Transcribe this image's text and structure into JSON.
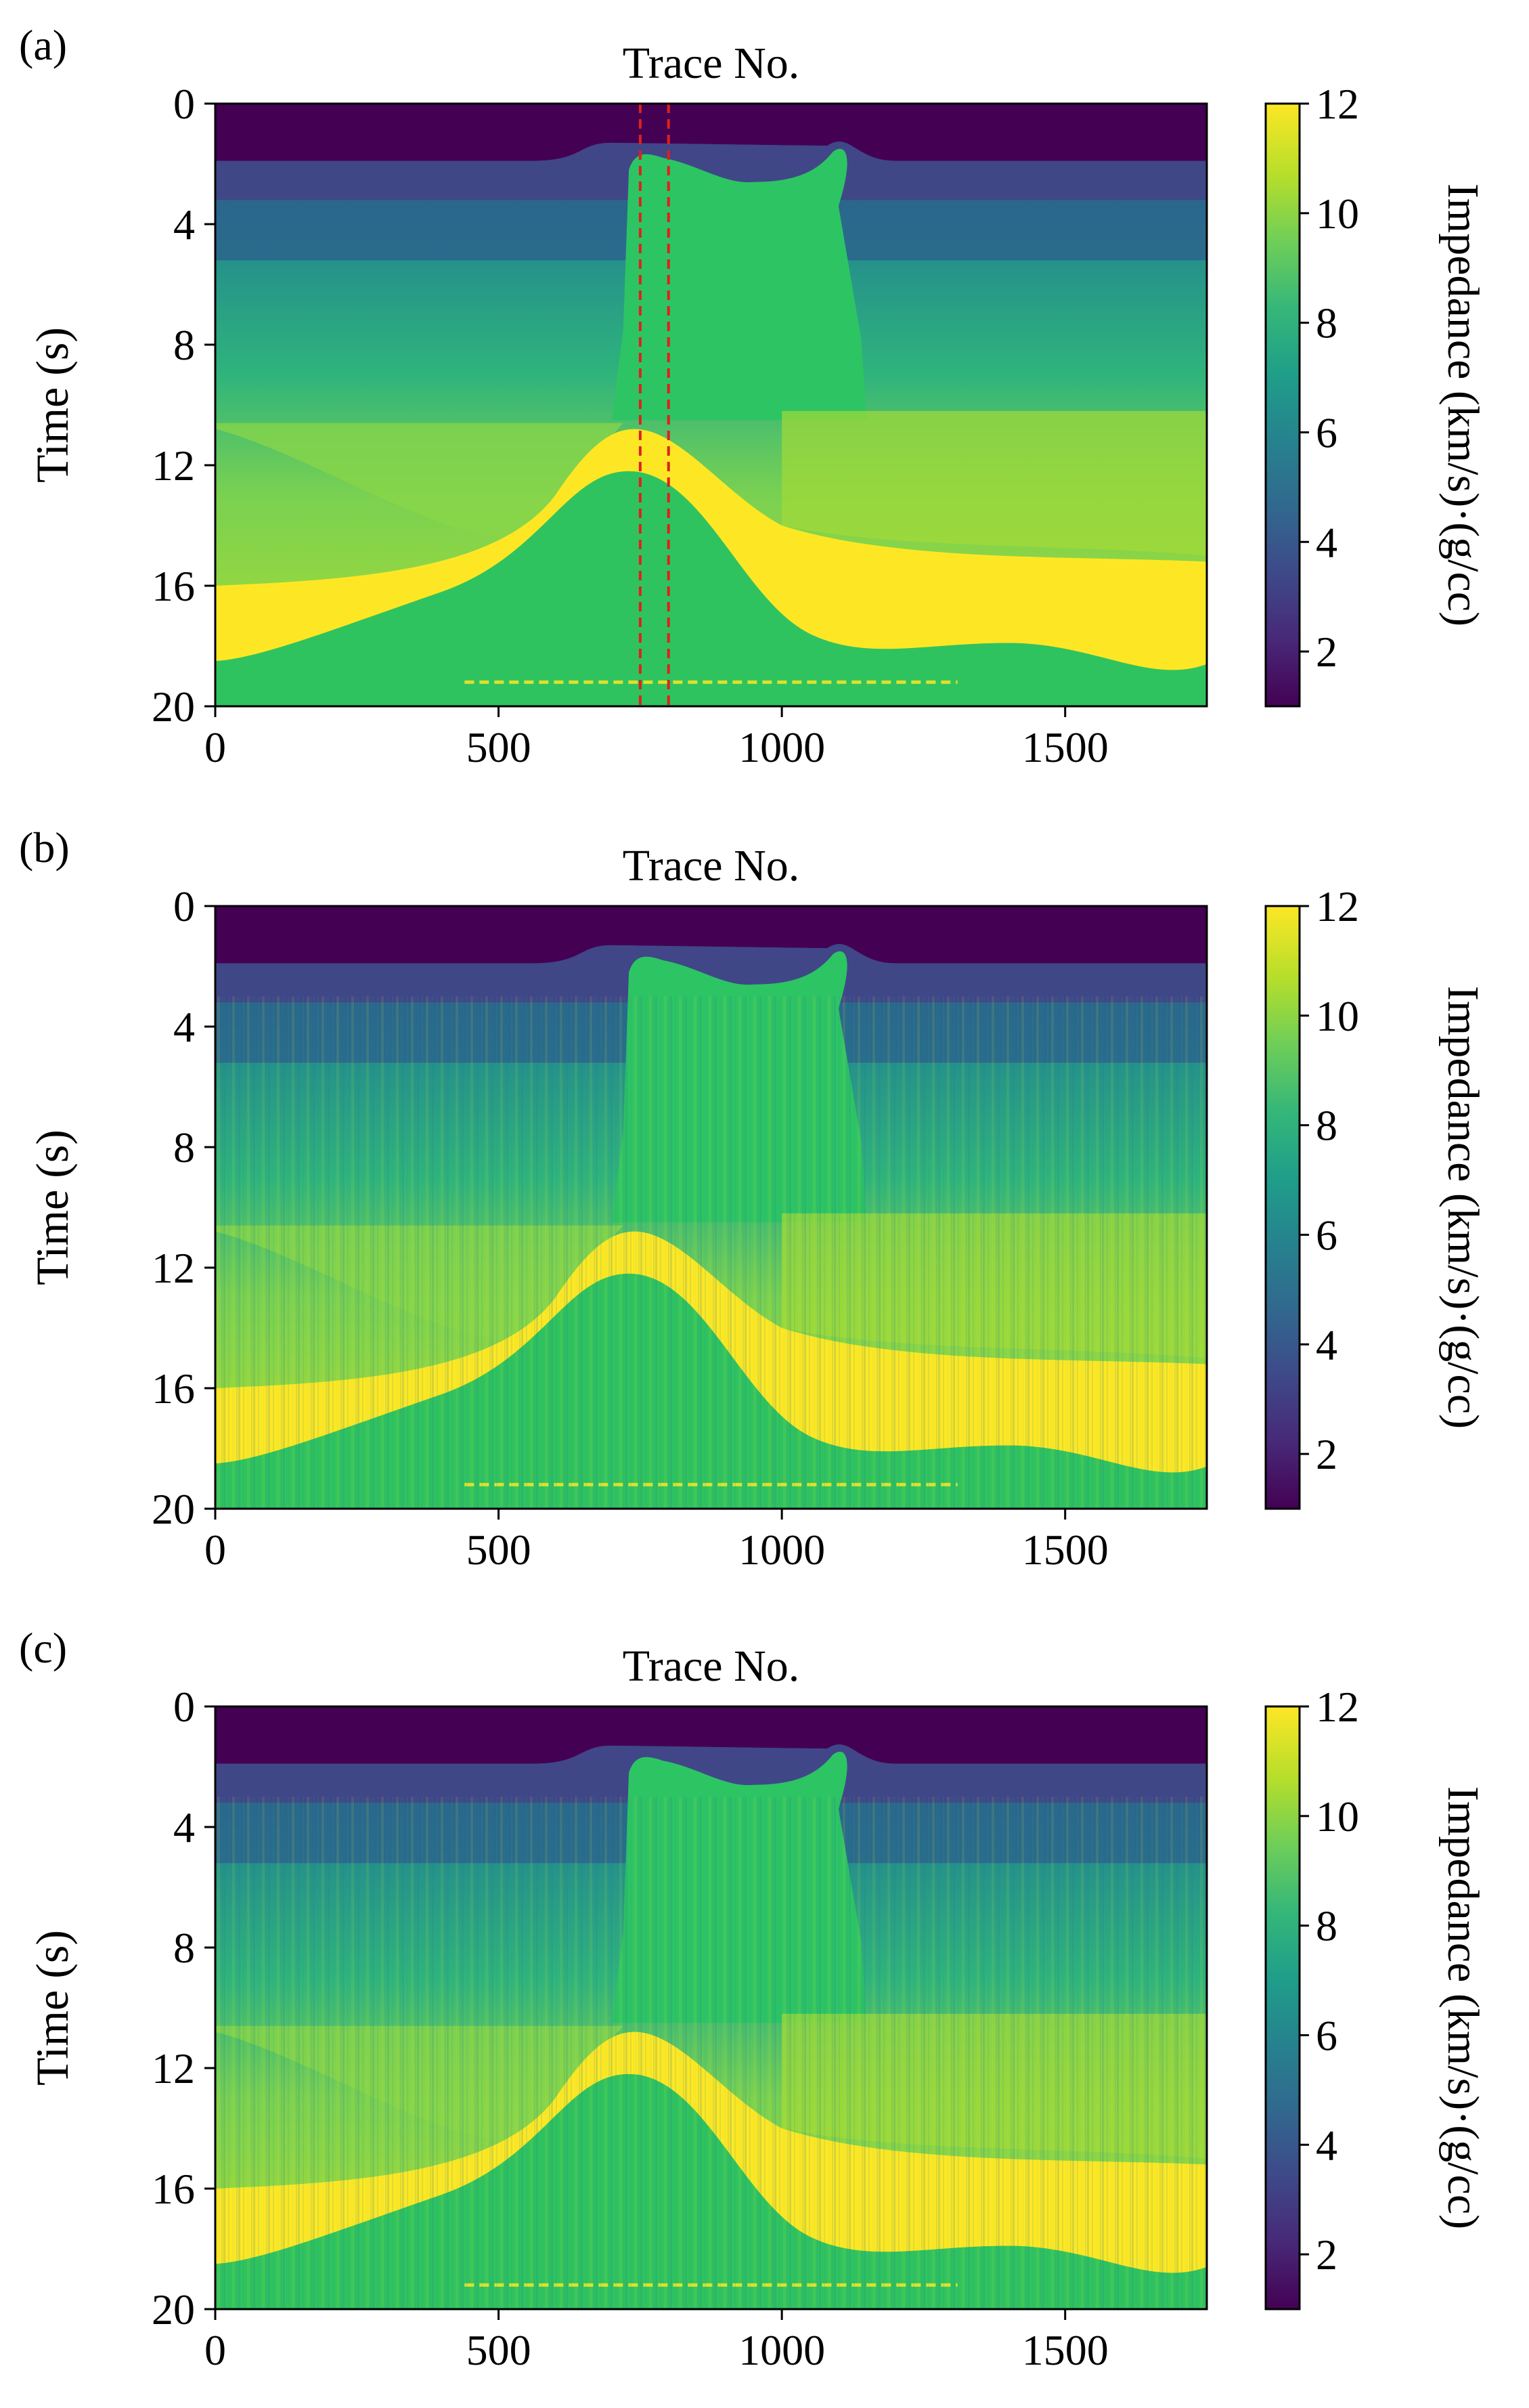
{
  "chart_data": [
    {
      "type": "heatmap",
      "panel": "(a)",
      "title": "Trace No.",
      "xlabel": "",
      "ylabel": "Time (s)",
      "xlim": [
        0,
        1750
      ],
      "ylim": [
        20,
        0
      ],
      "xticks": [
        "0",
        "500",
        "1000",
        "1500"
      ],
      "yticks": [
        "0",
        "4",
        "8",
        "12",
        "16",
        "20"
      ],
      "xtick_values": [
        0,
        500,
        1000,
        1500
      ],
      "ytick_values": [
        0,
        4,
        8,
        12,
        16,
        20
      ],
      "colorbar": {
        "label": "Impedance (km/s)·(g/cc)",
        "range": [
          1,
          12
        ],
        "ticks": [
          "2",
          "4",
          "6",
          "8",
          "10",
          "12"
        ],
        "tick_values": [
          2,
          4,
          6,
          8,
          10,
          12
        ],
        "colormap": "viridis"
      },
      "annotation": "red dashed vertical lines at traces 750 and 800",
      "marker_traces": [
        750,
        800
      ],
      "style": "smooth"
    },
    {
      "type": "heatmap",
      "panel": "(b)",
      "title": "Trace No.",
      "xlabel": "",
      "ylabel": "Time (s)",
      "xlim": [
        0,
        1750
      ],
      "ylim": [
        20,
        0
      ],
      "xticks": [
        "0",
        "500",
        "1000",
        "1500"
      ],
      "yticks": [
        "0",
        "4",
        "8",
        "12",
        "16",
        "20"
      ],
      "xtick_values": [
        0,
        500,
        1000,
        1500
      ],
      "ytick_values": [
        0,
        4,
        8,
        12,
        16,
        20
      ],
      "colorbar": {
        "label": "Impedance (km/s)·(g/cc)",
        "range": [
          1,
          12
        ],
        "ticks": [
          "2",
          "4",
          "6",
          "8",
          "10",
          "12"
        ],
        "tick_values": [
          2,
          4,
          6,
          8,
          10,
          12
        ],
        "colormap": "viridis"
      },
      "style": "noisy"
    },
    {
      "type": "heatmap",
      "panel": "(c)",
      "title": "Trace No.",
      "xlabel": "",
      "ylabel": "Time (s)",
      "xlim": [
        0,
        1750
      ],
      "ylim": [
        20,
        0
      ],
      "xticks": [
        "0",
        "500",
        "1000",
        "1500"
      ],
      "yticks": [
        "0",
        "4",
        "8",
        "12",
        "16",
        "20"
      ],
      "xtick_values": [
        0,
        500,
        1000,
        1500
      ],
      "ytick_values": [
        0,
        4,
        8,
        12,
        16,
        20
      ],
      "colorbar": {
        "label": "Impedance (km/s)·(g/cc)",
        "range": [
          1,
          12
        ],
        "ticks": [
          "2",
          "4",
          "6",
          "8",
          "10",
          "12"
        ],
        "tick_values": [
          2,
          4,
          6,
          8,
          10,
          12
        ],
        "colormap": "viridis"
      },
      "style": "noisy"
    }
  ],
  "colors": {
    "viridis_stops": [
      "#440154",
      "#482878",
      "#3e4989",
      "#31688e",
      "#26828e",
      "#1f9e89",
      "#35b779",
      "#6ece58",
      "#b5de2b",
      "#fde725"
    ],
    "marker_line": "#e0201a"
  }
}
